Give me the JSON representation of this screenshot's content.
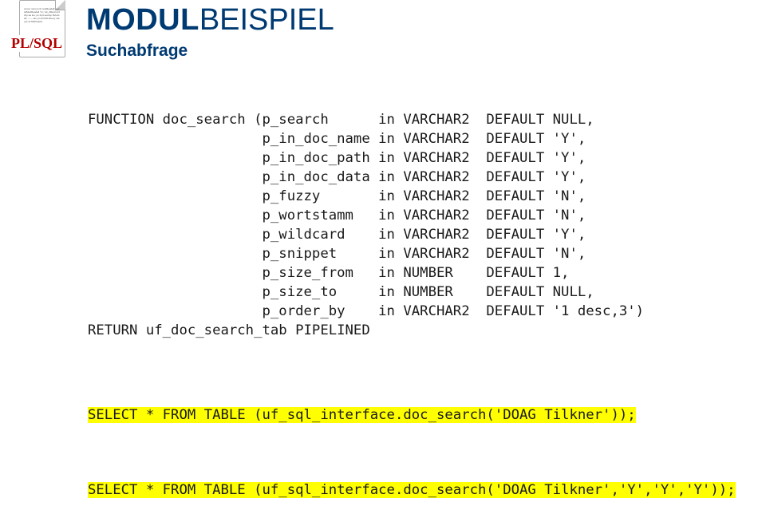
{
  "header": {
    "title_bold": "MODUL",
    "title_light": "BEISPIEL",
    "subtitle": "Suchabfrage",
    "plsql_label": "PL/SQL",
    "doc_icon_text": "cursor\n  vars;conf modReadall;\n  vecsdModReadall ^pr;\n  wlt_dfded loc3 vbp aa loo;\npo\n fur(Lsecrap RvlocLab;\n------\nlao; pi\nlai lSSLbKeuy ratt vylt\nvlt MbRvapld,"
  },
  "colors": {
    "title": "#003a72",
    "plsql": "#b30000",
    "text": "#1a1a1a",
    "highlight": "#ffff00",
    "background": "#ffffff"
  },
  "code": {
    "fn_open": "FUNCTION doc_search (p_search      in VARCHAR2  DEFAULT NULL,",
    "p1": "                     p_in_doc_name in VARCHAR2  DEFAULT 'Y',",
    "p2": "                     p_in_doc_path in VARCHAR2  DEFAULT 'Y',",
    "p3": "                     p_in_doc_data in VARCHAR2  DEFAULT 'Y',",
    "p4": "                     p_fuzzy       in VARCHAR2  DEFAULT 'N',",
    "p5": "                     p_wortstamm   in VARCHAR2  DEFAULT 'N',",
    "p6": "                     p_wildcard    in VARCHAR2  DEFAULT 'Y',",
    "p7": "                     p_snippet     in VARCHAR2  DEFAULT 'N',",
    "p8": "                     p_size_from   in NUMBER    DEFAULT 1,",
    "p9": "                     p_size_to     in NUMBER    DEFAULT NULL,",
    "p10": "                     p_order_by    in VARCHAR2  DEFAULT '1 desc,3')",
    "fn_ret": "RETURN uf_doc_search_tab PIPELINED"
  },
  "sql1": "SELECT * FROM TABLE (uf_sql_interface.doc_search('DOAG Tilkner'));",
  "sql2": "SELECT * FROM TABLE (uf_sql_interface.doc_search('DOAG Tilkner','Y','Y','Y'));"
}
